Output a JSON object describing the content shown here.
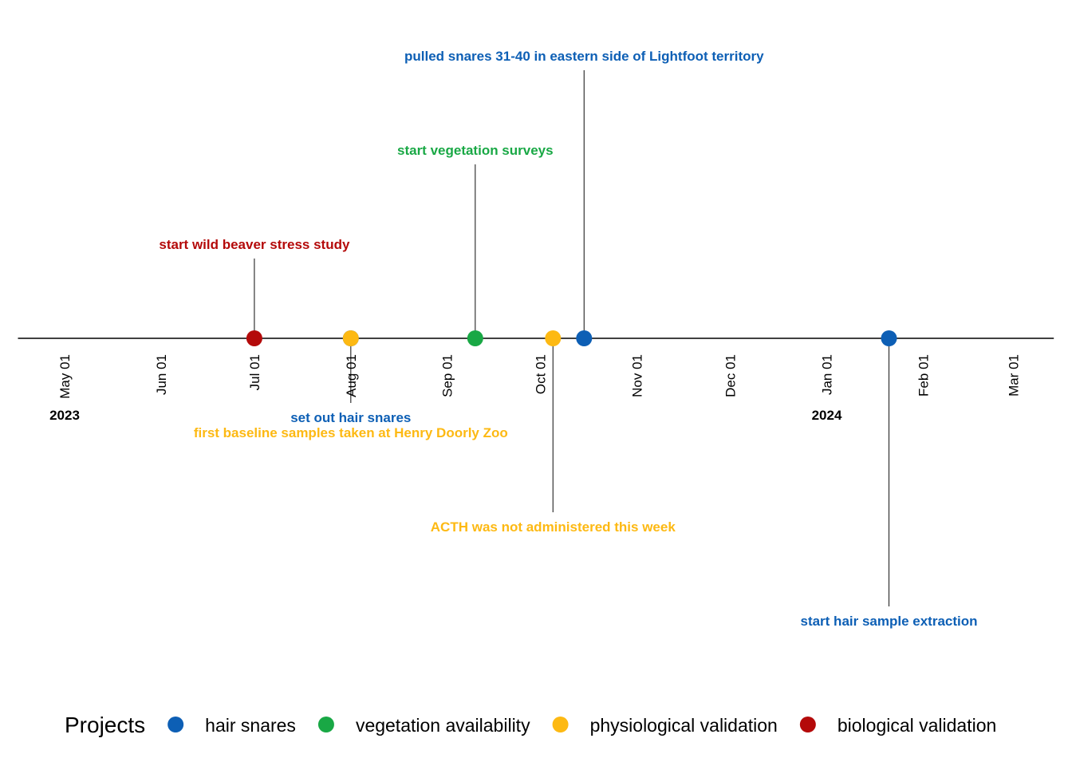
{
  "chart_data": {
    "type": "timeline",
    "x_range": [
      "2023-04-16",
      "2024-03-14"
    ],
    "tick_labels": [
      {
        "date": "2023-05-01",
        "label": "May 01"
      },
      {
        "date": "2023-06-01",
        "label": "Jun 01"
      },
      {
        "date": "2023-07-01",
        "label": "Jul 01"
      },
      {
        "date": "2023-08-01",
        "label": "Aug 01"
      },
      {
        "date": "2023-09-01",
        "label": "Sep 01"
      },
      {
        "date": "2023-10-01",
        "label": "Oct 01"
      },
      {
        "date": "2023-11-01",
        "label": "Nov 01"
      },
      {
        "date": "2023-12-01",
        "label": "Dec 01"
      },
      {
        "date": "2024-01-01",
        "label": "Jan 01"
      },
      {
        "date": "2024-02-01",
        "label": "Feb 01"
      },
      {
        "date": "2024-03-01",
        "label": "Mar 01"
      }
    ],
    "year_labels": [
      {
        "date": "2023-05-01",
        "label": "2023"
      },
      {
        "date": "2024-01-01",
        "label": "2024"
      }
    ],
    "events": [
      {
        "date": "2023-07-01",
        "project": "biological validation",
        "label": "start wild beaver stress study",
        "position": 1.0
      },
      {
        "date": "2023-08-01",
        "project": "hair snares",
        "label": "set out hair snares",
        "position": -1.0
      },
      {
        "date": "2023-08-01",
        "project": "physiological validation",
        "label": "first baseline samples taken at Henry Doorly Zoo",
        "position": -1.0
      },
      {
        "date": "2023-09-10",
        "project": "vegetation availability",
        "label": "start vegetation surveys",
        "position": 2.0
      },
      {
        "date": "2023-10-05",
        "project": "physiological validation",
        "label": "ACTH was not administered this week",
        "position": -2.0
      },
      {
        "date": "2023-10-15",
        "project": "hair snares",
        "label": "pulled snares 31-40 in eastern side of Lightfoot territory",
        "position": 3.0
      },
      {
        "date": "2024-01-21",
        "project": "hair snares",
        "label": "start hair sample extraction",
        "position": -3.0
      }
    ],
    "legend": {
      "title": "Projects",
      "placement": "bottom",
      "items": [
        {
          "name": "hair snares",
          "color": "#0d5fb5"
        },
        {
          "name": "vegetation availability",
          "color": "#19a845"
        },
        {
          "name": "physiological validation",
          "color": "#fdb913"
        },
        {
          "name": "biological validation",
          "color": "#b40a0a"
        }
      ]
    }
  }
}
